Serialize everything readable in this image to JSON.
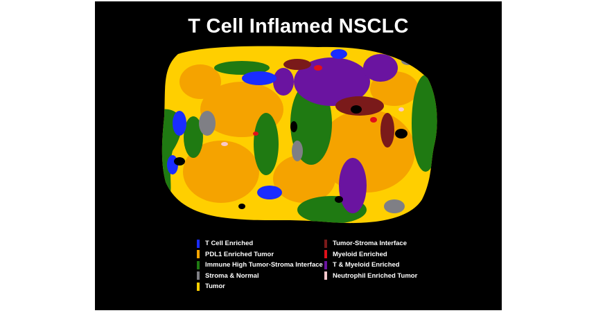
{
  "title": "T Cell Inflamed NSCLC",
  "legend_left": [
    {
      "label": "T Cell Enriched",
      "color": "#1a2cff"
    },
    {
      "label": "PDL1 Enriched Tumor",
      "color": "#f5a300"
    },
    {
      "label": "Immune High Tumor-Stroma Interface",
      "color": "#1f7a12"
    },
    {
      "label": "Stroma & Normal",
      "color": "#7f7f85"
    },
    {
      "label": "Tumor",
      "color": "#ffd000"
    }
  ],
  "legend_right": [
    {
      "label": "Tumor-Stroma Interface",
      "color": "#7a1a1a"
    },
    {
      "label": "Myeloid Enriched",
      "color": "#e0101a"
    },
    {
      "label": "T & Myeloid Enriched",
      "color": "#6a14a0"
    },
    {
      "label": "Neutrophil Enriched Tumor",
      "color": "#f8c8cc"
    }
  ]
}
